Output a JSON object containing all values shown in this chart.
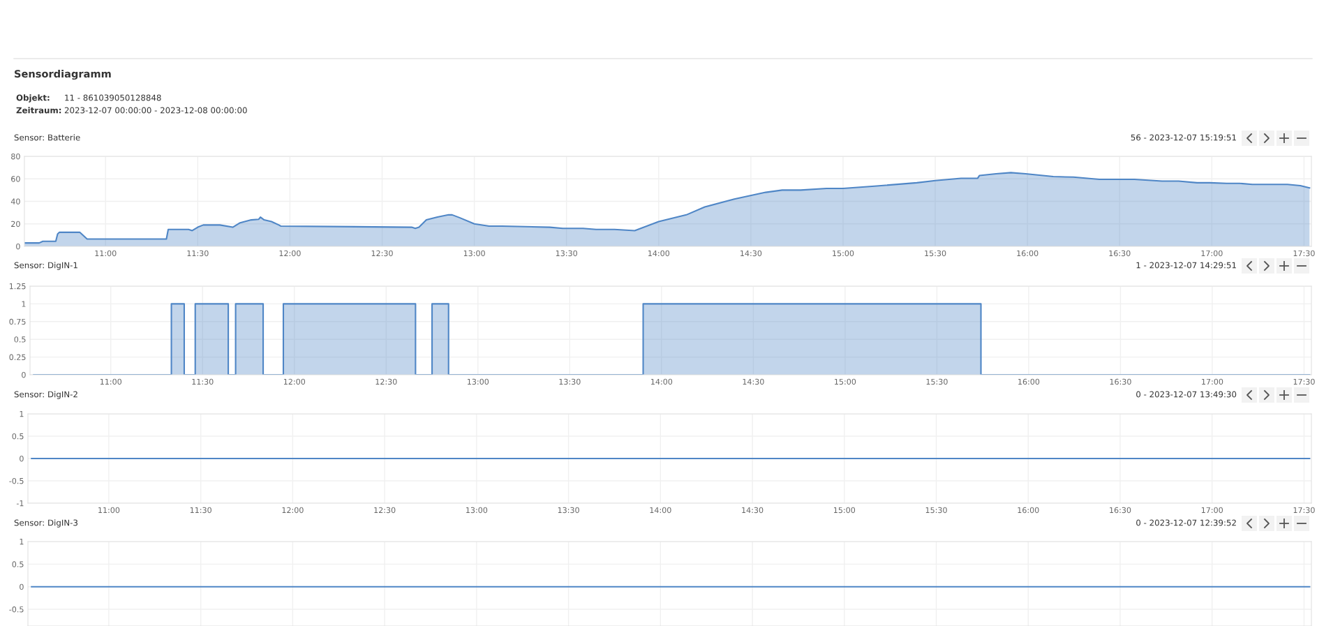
{
  "chart_data": [
    {
      "type": "other",
      "title": "Sensordiagramm",
      "annotations": [
        "Objekt:",
        "11 - 861039050128848",
        "Zeitraum:",
        "2023-12-07 00:00:00 - 2023-12-08 00:00:00"
      ]
    },
    {
      "type": "area",
      "title": "Sensor: Batterie",
      "annotations": [
        "56 - 2023-12-07 15:19:51"
      ],
      "grid": true,
      "xlim": [
        10.56,
        17.54
      ],
      "ylim": [
        0,
        80
      ],
      "yticks": [
        0,
        20,
        40,
        60,
        80
      ],
      "xticks": [
        {
          "value": 11,
          "label": "11:00"
        },
        {
          "value": 11.5,
          "label": "11:30"
        },
        {
          "value": 12,
          "label": "12:00"
        },
        {
          "value": 12.5,
          "label": "12:30"
        },
        {
          "value": 13,
          "label": "13:00"
        },
        {
          "value": 13.5,
          "label": "13:30"
        },
        {
          "value": 14,
          "label": "14:00"
        },
        {
          "value": 14.5,
          "label": "14:30"
        },
        {
          "value": 15,
          "label": "15:00"
        },
        {
          "value": 15.5,
          "label": "15:30"
        },
        {
          "value": 16,
          "label": "16:00"
        },
        {
          "value": 16.5,
          "label": "16:30"
        },
        {
          "value": 17,
          "label": "17:00"
        },
        {
          "value": 17.5,
          "label": "17:30"
        }
      ],
      "series": [
        {
          "color": "#4f86c6",
          "x": [
            10.56,
            10.64,
            10.66,
            10.73,
            10.74,
            10.75,
            10.86,
            10.9,
            11.33,
            11.34,
            11.45,
            11.47,
            11.5,
            11.53,
            11.62,
            11.69,
            11.73,
            11.79,
            11.83,
            11.84,
            11.86,
            11.9,
            11.94,
            11.95,
            12.66,
            12.68,
            12.7,
            12.74,
            12.8,
            12.86,
            12.88,
            12.92,
            13.0,
            13.08,
            13.15,
            13.41,
            13.48,
            13.59,
            13.66,
            13.76,
            13.87,
            13.92,
            14.0,
            14.15,
            14.25,
            14.41,
            14.58,
            14.67,
            14.77,
            14.91,
            15.0,
            15.17,
            15.4,
            15.5,
            15.64,
            15.73,
            15.74,
            15.83,
            15.91,
            15.99,
            16.14,
            16.25,
            16.39,
            16.58,
            16.73,
            16.82,
            16.92,
            16.99,
            17.08,
            17.15,
            17.22,
            17.41,
            17.48,
            17.53
          ],
          "values": [
            3,
            3,
            4.5,
            4.5,
            11,
            12.5,
            12.5,
            6.5,
            6.5,
            15,
            15,
            14,
            17,
            19,
            19,
            17,
            21,
            23.5,
            24,
            26,
            23.5,
            22,
            19,
            18,
            17,
            16,
            17,
            23.5,
            26,
            28,
            28,
            25.5,
            20,
            18,
            18,
            17,
            16,
            16,
            15,
            15,
            14,
            17,
            22,
            28,
            35,
            42,
            48,
            50,
            50,
            51.5,
            51.5,
            53.5,
            56.5,
            58.5,
            60.5,
            60.5,
            63,
            64.5,
            65.5,
            64.5,
            62,
            61.5,
            59.5,
            59.5,
            58,
            58,
            56.5,
            56.5,
            56,
            56,
            55,
            55,
            54,
            52
          ]
        }
      ]
    },
    {
      "type": "area",
      "title": "Sensor: DigIN-1",
      "annotations": [
        "1 - 2023-12-07 14:29:51"
      ],
      "grid": true,
      "xlim": [
        10.56,
        17.54
      ],
      "ylim": [
        0,
        1.25
      ],
      "yticks": [
        0,
        0.25,
        0.5,
        0.75,
        1,
        1.25
      ],
      "xticks": [
        {
          "value": 11,
          "label": "11:00"
        },
        {
          "value": 11.5,
          "label": "11:30"
        },
        {
          "value": 12,
          "label": "12:00"
        },
        {
          "value": 12.5,
          "label": "12:30"
        },
        {
          "value": 13,
          "label": "13:00"
        },
        {
          "value": 13.5,
          "label": "13:30"
        },
        {
          "value": 14,
          "label": "14:00"
        },
        {
          "value": 14.5,
          "label": "14:30"
        },
        {
          "value": 15,
          "label": "15:00"
        },
        {
          "value": 15.5,
          "label": "15:30"
        },
        {
          "value": 16,
          "label": "16:00"
        },
        {
          "value": 16.5,
          "label": "16:30"
        },
        {
          "value": 17,
          "label": "17:00"
        },
        {
          "value": 17.5,
          "label": "17:30"
        }
      ],
      "series": [
        {
          "color": "#4f86c6",
          "x": [
            10.58,
            11.33,
            11.33,
            11.4,
            11.4,
            11.46,
            11.46,
            11.64,
            11.64,
            11.68,
            11.68,
            11.83,
            11.83,
            11.94,
            11.94,
            12.66,
            12.66,
            12.75,
            12.75,
            12.84,
            12.84,
            13.9,
            13.9,
            15.74,
            15.74,
            17.53
          ],
          "values": [
            0,
            0,
            1,
            1,
            0,
            0,
            1,
            1,
            0,
            0,
            1,
            1,
            0,
            0,
            1,
            1,
            0,
            0,
            1,
            1,
            0,
            0,
            1,
            1,
            0,
            0
          ]
        }
      ]
    },
    {
      "type": "line",
      "title": "Sensor: DigIN-2",
      "annotations": [
        "0 - 2023-12-07 13:49:30"
      ],
      "grid": true,
      "xlim": [
        10.56,
        17.54
      ],
      "ylim": [
        -1,
        1
      ],
      "yticks": [
        -1,
        -0.5,
        0,
        0.5,
        1
      ],
      "xticks": [
        {
          "value": 11,
          "label": "11:00"
        },
        {
          "value": 11.5,
          "label": "11:30"
        },
        {
          "value": 12,
          "label": "12:00"
        },
        {
          "value": 12.5,
          "label": "12:30"
        },
        {
          "value": 13,
          "label": "13:00"
        },
        {
          "value": 13.5,
          "label": "13:30"
        },
        {
          "value": 14,
          "label": "14:00"
        },
        {
          "value": 14.5,
          "label": "14:30"
        },
        {
          "value": 15,
          "label": "15:00"
        },
        {
          "value": 15.5,
          "label": "15:30"
        },
        {
          "value": 16,
          "label": "16:00"
        },
        {
          "value": 16.5,
          "label": "16:30"
        },
        {
          "value": 17,
          "label": "17:00"
        },
        {
          "value": 17.5,
          "label": "17:30"
        }
      ],
      "series": [
        {
          "color": "#4f86c6",
          "x": [
            10.58,
            17.53
          ],
          "values": [
            0,
            0
          ]
        }
      ]
    },
    {
      "type": "line",
      "title": "Sensor: DigIN-3",
      "annotations": [
        "0 - 2023-12-07 12:39:52"
      ],
      "grid": true,
      "tick_labels": "y",
      "xlim": [
        10.56,
        17.54
      ],
      "ylim": [
        -0.87,
        1
      ],
      "yticks": [
        -0.5,
        0,
        0.5,
        1
      ],
      "xticks": [
        {
          "value": 11,
          "label": null
        },
        {
          "value": 11.5,
          "label": null
        },
        {
          "value": 12,
          "label": null
        },
        {
          "value": 12.5,
          "label": null
        },
        {
          "value": 13,
          "label": null
        },
        {
          "value": 13.5,
          "label": null
        },
        {
          "value": 14,
          "label": null
        },
        {
          "value": 14.5,
          "label": null
        },
        {
          "value": 15,
          "label": null
        },
        {
          "value": 15.5,
          "label": null
        },
        {
          "value": 16,
          "label": null
        },
        {
          "value": 16.5,
          "label": null
        },
        {
          "value": 17,
          "label": null
        },
        {
          "value": 17.5,
          "label": null
        }
      ],
      "series": [
        {
          "color": "#4f86c6",
          "x": [
            10.58,
            17.53
          ],
          "values": [
            0,
            0
          ]
        }
      ]
    }
  ]
}
